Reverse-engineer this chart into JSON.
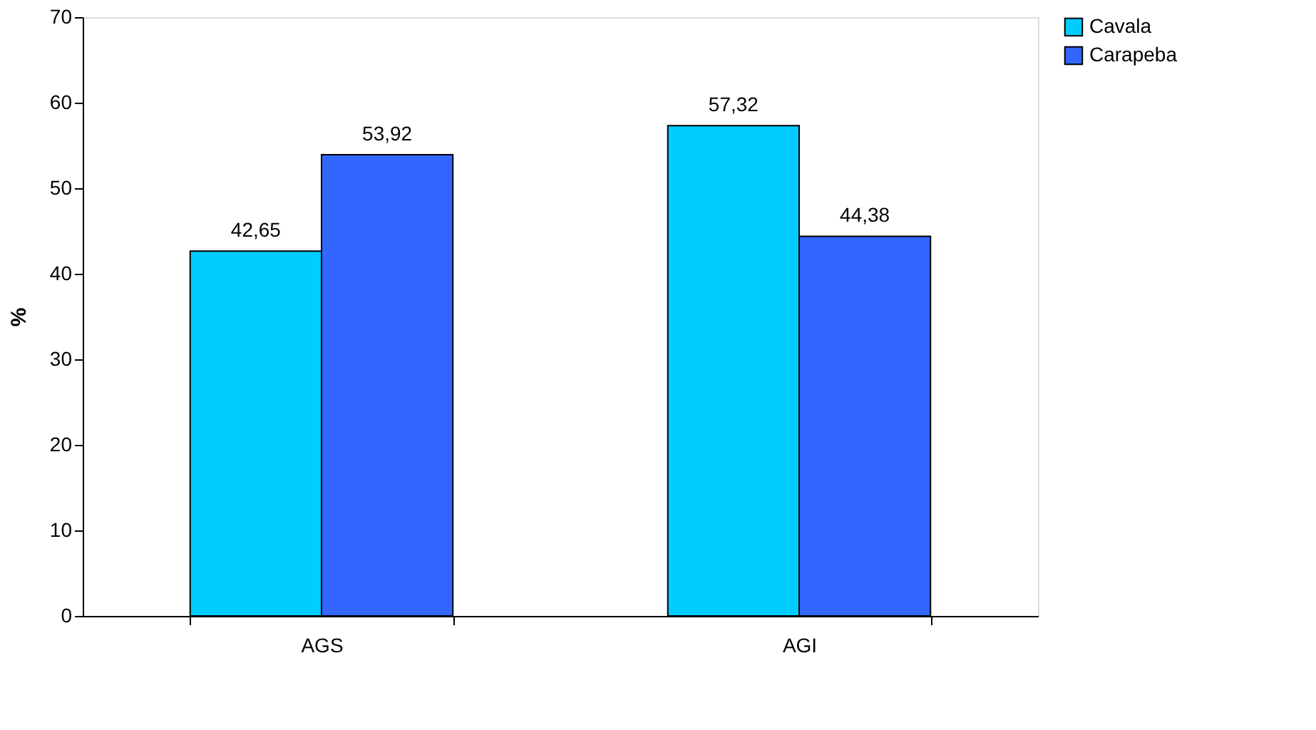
{
  "chart_data": {
    "type": "bar",
    "ylabel": "%",
    "categories": [
      "AGS",
      "AGI"
    ],
    "series": [
      {
        "name": "Cavala",
        "color": "#00ccff",
        "values": [
          42.65,
          57.32
        ],
        "value_labels": [
          "42,65",
          "57,32"
        ]
      },
      {
        "name": "Carapeba",
        "color": "#3366ff",
        "values": [
          53.92,
          44.38
        ],
        "value_labels": [
          "53,92",
          "44,38"
        ]
      }
    ],
    "ylim": [
      0,
      70
    ],
    "yticks": [
      0,
      10,
      20,
      30,
      40,
      50,
      60,
      70
    ],
    "grid": false,
    "legend": "right"
  }
}
